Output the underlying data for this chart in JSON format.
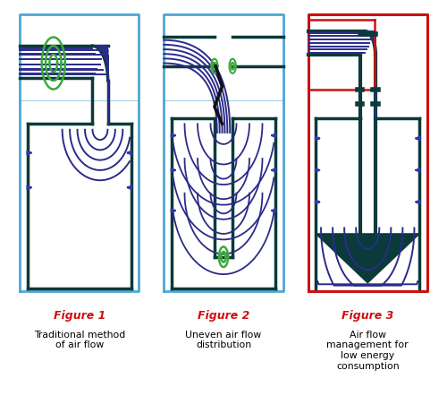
{
  "fig_width": 5.0,
  "fig_height": 4.61,
  "bg_color": "#ffffff",
  "border_blue": "#4da6d4",
  "border_red": "#cc1111",
  "flow_color": "#2b2b8a",
  "duct_color": "#0a3a3a",
  "green_color": "#3aaa3a",
  "arrow_color": "#3535aa",
  "fig_label_color": "#cc1111",
  "fig_label_size": 9,
  "caption_size": 7.8,
  "titles": [
    "Figure 1",
    "Figure 2",
    "Figure 3"
  ],
  "captions": [
    "Traditional method\nof air flow",
    "Uneven air flow\ndistribution",
    "Air flow\nmanagement for\nlow energy\nconsumption"
  ]
}
